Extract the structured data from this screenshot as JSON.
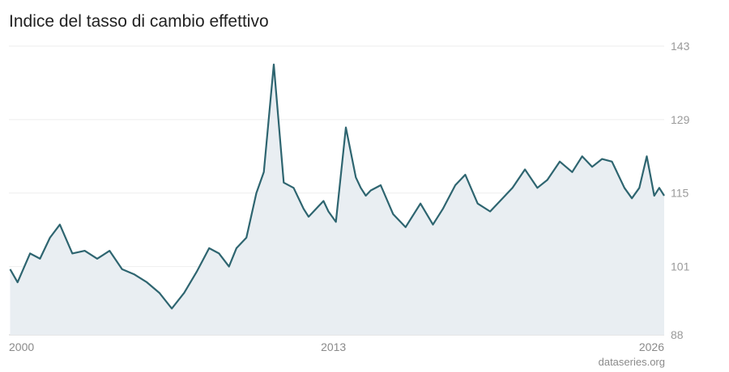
{
  "header": {
    "title": "Indice del tasso di cambio effettivo"
  },
  "footer": {
    "source": "dataseries.org"
  },
  "colors": {
    "line": "#2e6570",
    "area": "#e9eef2",
    "grid": "#eeeeee",
    "axis": "#cccccc"
  },
  "chart_data": {
    "type": "area",
    "title": "Indice del tasso di cambio effettivo",
    "xlabel": "",
    "ylabel": "",
    "xlim": [
      1999.95,
      2026.3
    ],
    "ylim": [
      88,
      143
    ],
    "y_ticks": [
      143,
      129,
      115,
      101,
      88
    ],
    "x_ticks": [
      2000,
      2013,
      2026
    ],
    "y_axis_position": "right",
    "grid": true,
    "series": [
      {
        "name": "",
        "x": [
          2000.0,
          2000.3,
          2000.8,
          2001.2,
          2001.6,
          2002.0,
          2002.5,
          2003.0,
          2003.5,
          2004.0,
          2004.5,
          2005.0,
          2005.5,
          2006.0,
          2006.5,
          2007.0,
          2007.5,
          2008.0,
          2008.4,
          2008.8,
          2009.1,
          2009.5,
          2009.9,
          2010.2,
          2010.6,
          2011.0,
          2011.4,
          2011.8,
          2012.0,
          2012.3,
          2012.6,
          2012.8,
          2013.1,
          2013.5,
          2013.9,
          2014.1,
          2014.3,
          2014.5,
          2014.9,
          2015.4,
          2015.9,
          2016.5,
          2017.0,
          2017.4,
          2017.9,
          2018.3,
          2018.8,
          2019.3,
          2019.7,
          2020.2,
          2020.7,
          2021.2,
          2021.6,
          2022.1,
          2022.6,
          2023.0,
          2023.4,
          2023.8,
          2024.2,
          2024.7,
          2025.0,
          2025.3,
          2025.6,
          2025.9,
          2026.1,
          2026.3
        ],
        "y": [
          100.5,
          98.0,
          103.5,
          102.5,
          106.5,
          109.0,
          103.5,
          104.0,
          102.5,
          104.0,
          100.5,
          99.5,
          98.0,
          96.0,
          93.0,
          96.0,
          100.0,
          104.5,
          103.5,
          101.0,
          104.5,
          106.5,
          115.0,
          119.0,
          139.5,
          117.0,
          116.0,
          112.0,
          110.5,
          112.0,
          113.5,
          111.5,
          109.5,
          127.5,
          118.0,
          116.0,
          114.5,
          115.5,
          116.5,
          111.0,
          108.5,
          113.0,
          109.0,
          112.0,
          116.5,
          118.5,
          113.0,
          111.5,
          113.5,
          116.0,
          119.5,
          116.0,
          117.5,
          121.0,
          119.0,
          122.0,
          120.0,
          121.5,
          121.0,
          116.0,
          114.0,
          116.0,
          122.0,
          114.5,
          116.0,
          114.5
        ]
      }
    ]
  }
}
